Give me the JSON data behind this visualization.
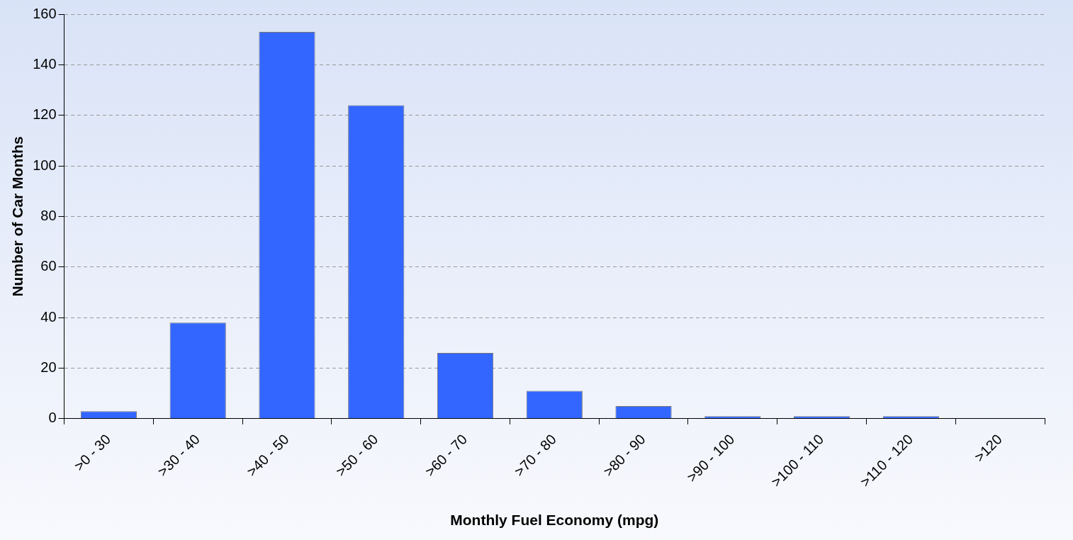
{
  "chart_data": {
    "type": "bar",
    "xlabel": "Monthly Fuel Economy (mpg)",
    "ylabel": "Number of Car Months",
    "categories": [
      ">0 - 30",
      ">30 - 40",
      ">40 - 50",
      ">50 - 60",
      ">60 - 70",
      ">70 - 80",
      ">80 - 90",
      ">90 - 100",
      ">100 - 110",
      ">110 - 120",
      ">120"
    ],
    "values": [
      3,
      38,
      153,
      124,
      26,
      11,
      5,
      1,
      1,
      1,
      0
    ],
    "color": "#3366ff",
    "ylim": [
      0,
      160
    ],
    "yticks": [
      0,
      20,
      40,
      60,
      80,
      100,
      120,
      140,
      160
    ],
    "grid": "y",
    "legend": false
  }
}
